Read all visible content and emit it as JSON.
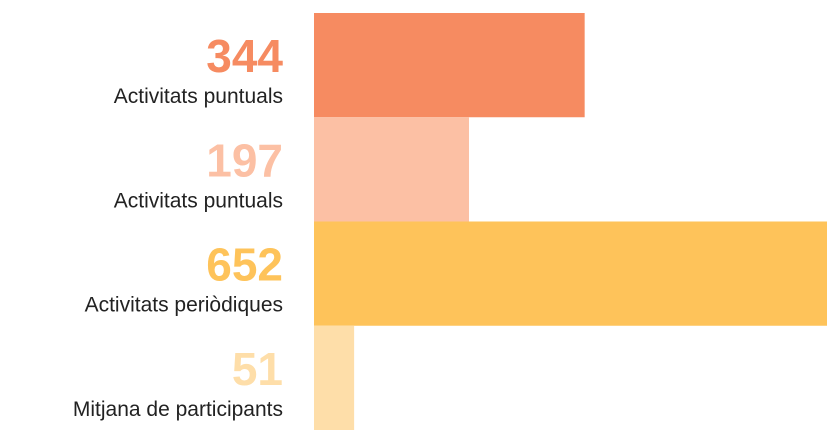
{
  "chart_data": {
    "type": "bar",
    "orientation": "horizontal",
    "categories": [
      "Activitats puntuals",
      "Activitats puntuals",
      "Activitats periòdiques",
      "Mitjana de participants"
    ],
    "values": [
      344,
      197,
      652,
      51
    ],
    "colors": [
      "#f68b61",
      "#fcc0a4",
      "#fec35a",
      "#fedea9"
    ]
  }
}
